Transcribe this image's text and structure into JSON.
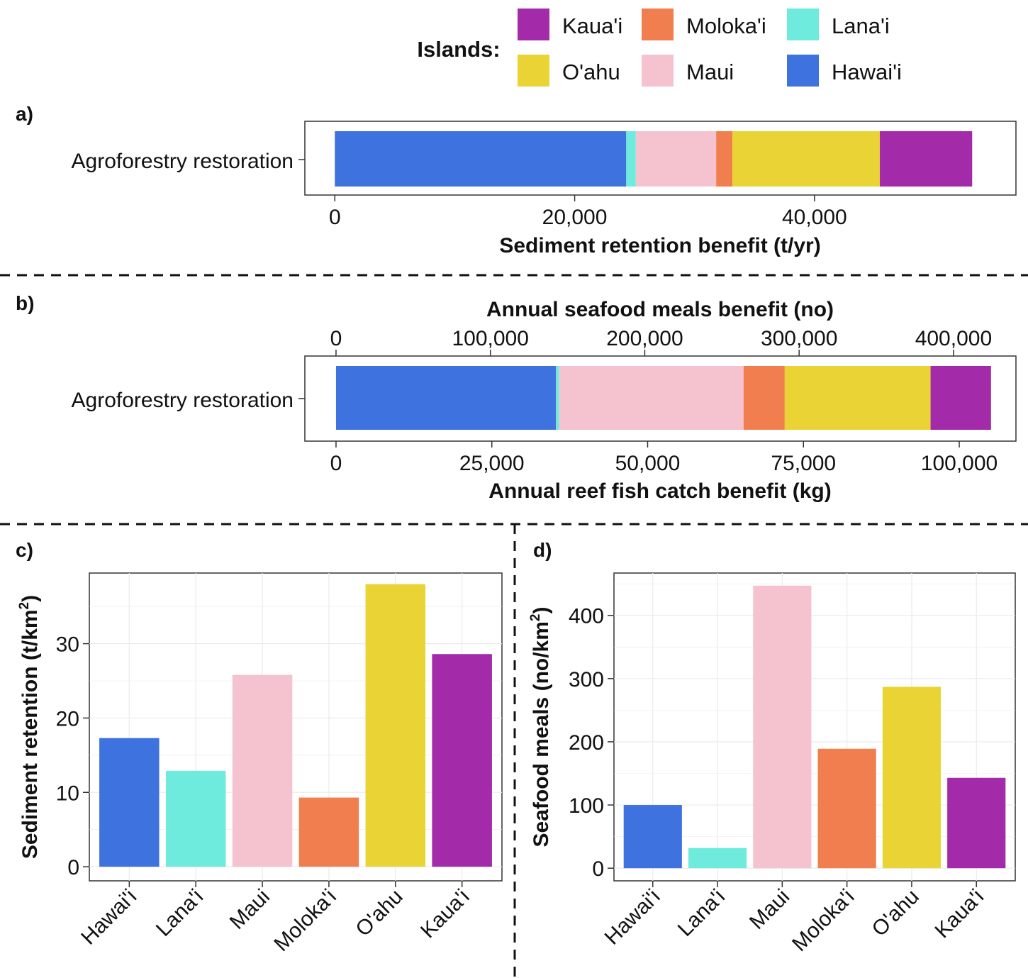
{
  "legend": {
    "title": "Islands:",
    "items": [
      {
        "label": "Kaua'i",
        "color": "#A32AA8"
      },
      {
        "label": "Moloka'i",
        "color": "#F07E4E"
      },
      {
        "label": "Lana'i",
        "color": "#6EEBDD"
      },
      {
        "label": "O'ahu",
        "color": "#EAD334"
      },
      {
        "label": "Maui",
        "color": "#F5C2CF"
      },
      {
        "label": "Hawai'i",
        "color": "#3E72DE"
      }
    ]
  },
  "chart_data": [
    {
      "panel": "a)",
      "type": "bar",
      "orientation": "horizontal-stacked",
      "category": "Agroforestry restoration",
      "xlabel": "Sediment retention benefit (t/yr)",
      "xlim": [
        -2500,
        56800
      ],
      "ticks": [
        0,
        20000,
        40000
      ],
      "tick_labels": [
        "0",
        "20,000",
        "40,000"
      ],
      "series": [
        {
          "name": "Hawai'i",
          "value": 24300
        },
        {
          "name": "Lana'i",
          "value": 800
        },
        {
          "name": "Maui",
          "value": 6700
        },
        {
          "name": "Moloka'i",
          "value": 1350
        },
        {
          "name": "O'ahu",
          "value": 12300
        },
        {
          "name": "Kaua'i",
          "value": 7700
        }
      ]
    },
    {
      "panel": "b)",
      "type": "bar",
      "orientation": "horizontal-stacked",
      "category": "Agroforestry restoration",
      "xlabel": "Annual reef fish catch benefit (kg)",
      "xlim": [
        -5000,
        109100
      ],
      "ticks": [
        0,
        25000,
        50000,
        75000,
        100000
      ],
      "tick_labels": [
        "0",
        "25,000",
        "50,000",
        "75,000",
        "100,000"
      ],
      "top_axis": {
        "label": "Annual seafood meals benefit (no)",
        "ticks": [
          0,
          100000,
          200000,
          300000,
          400000
        ],
        "tick_labels": [
          "0",
          "100,000",
          "200,000",
          "300,000",
          "400,000"
        ],
        "scale_to_bottom": 0.2477
      },
      "series": [
        {
          "name": "Hawai'i",
          "value": 35300
        },
        {
          "name": "Lana'i",
          "value": 500
        },
        {
          "name": "Maui",
          "value": 29600
        },
        {
          "name": "Moloka'i",
          "value": 6600
        },
        {
          "name": "O'ahu",
          "value": 23400
        },
        {
          "name": "Kaua'i",
          "value": 9700
        }
      ]
    },
    {
      "panel": "c)",
      "type": "bar",
      "ylabel": "Sediment retention (t/km",
      "ylabel_sup": "2",
      "ylabel_end": ")",
      "ylim": [
        -1.9,
        39.5
      ],
      "yticks": [
        0,
        10,
        20,
        30
      ],
      "categories": [
        "Hawai'i",
        "Lana'i",
        "Maui",
        "Moloka'i",
        "O'ahu",
        "Kaua'i"
      ],
      "values": [
        17.3,
        12.9,
        25.8,
        9.3,
        38.0,
        28.6
      ]
    },
    {
      "panel": "d)",
      "type": "bar",
      "ylabel": "Seafood meals (no/km",
      "ylabel_sup": "2",
      "ylabel_end": ")",
      "ylim": [
        -20,
        467
      ],
      "yticks": [
        0,
        100,
        200,
        300,
        400
      ],
      "categories": [
        "Hawai'i",
        "Lana'i",
        "Maui",
        "Moloka'i",
        "O'ahu",
        "Kaua'i"
      ],
      "values": [
        100,
        32,
        447,
        189,
        287,
        143
      ]
    }
  ]
}
